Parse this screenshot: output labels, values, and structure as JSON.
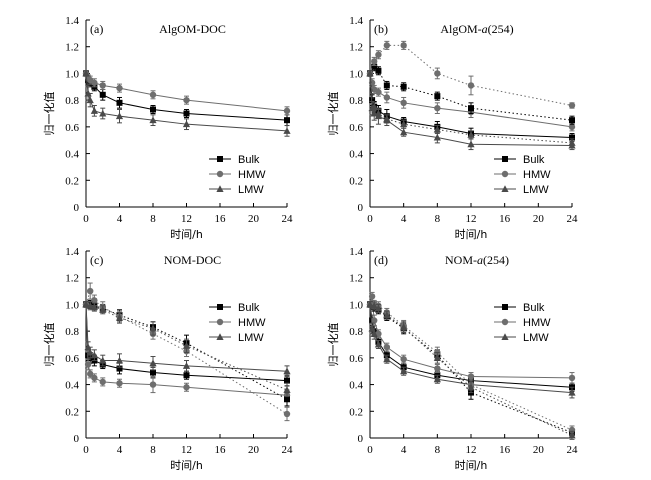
{
  "chart_data": [
    {
      "type": "line",
      "panel_label": "(a)",
      "title_parts": [
        {
          "text": "AlgOM-DOC",
          "italic": false
        }
      ],
      "xlabel": "时间/h",
      "ylabel": "归一化值",
      "xlim": [
        0,
        24
      ],
      "ylim": [
        0,
        1.4
      ],
      "xticks": [
        0,
        4,
        8,
        12,
        16,
        20,
        24
      ],
      "yticks": [
        0,
        0.2,
        0.4,
        0.6,
        0.8,
        1.0,
        1.2,
        1.4
      ],
      "legend_position": "lower-right",
      "series": [
        {
          "name": "Bulk",
          "style": "solid",
          "marker": "square",
          "x": [
            0,
            0.25,
            0.5,
            1,
            2,
            4,
            8,
            12,
            24
          ],
          "y": [
            1.0,
            0.95,
            0.93,
            0.9,
            0.84,
            0.78,
            0.73,
            0.7,
            0.65
          ],
          "err": [
            0.02,
            0.03,
            0.03,
            0.03,
            0.04,
            0.04,
            0.03,
            0.03,
            0.04
          ]
        },
        {
          "name": "HMW",
          "style": "solid",
          "marker": "circle",
          "x": [
            0,
            0.25,
            0.5,
            1,
            2,
            4,
            8,
            12,
            24
          ],
          "y": [
            1.0,
            0.97,
            0.95,
            0.93,
            0.91,
            0.89,
            0.84,
            0.8,
            0.72
          ],
          "err": [
            0.02,
            0.02,
            0.03,
            0.03,
            0.03,
            0.03,
            0.03,
            0.03,
            0.03
          ]
        },
        {
          "name": "LMW",
          "style": "solid",
          "marker": "triangle",
          "x": [
            0,
            0.25,
            0.5,
            1,
            2,
            4,
            8,
            12,
            24
          ],
          "y": [
            1.0,
            0.85,
            0.8,
            0.72,
            0.7,
            0.68,
            0.65,
            0.62,
            0.57
          ],
          "err": [
            0.02,
            0.05,
            0.05,
            0.04,
            0.04,
            0.05,
            0.04,
            0.04,
            0.04
          ]
        }
      ]
    },
    {
      "type": "line",
      "panel_label": "(b)",
      "title_parts": [
        {
          "text": "AlgOM-",
          "italic": false
        },
        {
          "text": "a",
          "italic": true
        },
        {
          "text": "(254)",
          "italic": false
        }
      ],
      "xlabel": "时间/h",
      "ylabel": "归一化值",
      "xlim": [
        0,
        24
      ],
      "ylim": [
        0,
        1.4
      ],
      "xticks": [
        0,
        4,
        8,
        12,
        16,
        20,
        24
      ],
      "yticks": [
        0,
        0.2,
        0.4,
        0.6,
        0.8,
        1.0,
        1.2,
        1.4
      ],
      "legend_position": "lower-right",
      "series": [
        {
          "name": "Bulk",
          "style": "solid",
          "marker": "square",
          "x": [
            0,
            0.25,
            0.5,
            1,
            2,
            4,
            8,
            12,
            24
          ],
          "y": [
            1.0,
            0.8,
            0.75,
            0.72,
            0.68,
            0.64,
            0.6,
            0.55,
            0.52
          ],
          "err": [
            0.02,
            0.04,
            0.04,
            0.04,
            0.05,
            0.03,
            0.04,
            0.04,
            0.03
          ]
        },
        {
          "name": "HMW",
          "style": "solid",
          "marker": "circle",
          "x": [
            0,
            0.25,
            0.5,
            1,
            2,
            4,
            8,
            12,
            24
          ],
          "y": [
            1.0,
            0.93,
            0.88,
            0.86,
            0.82,
            0.78,
            0.74,
            0.71,
            0.6
          ],
          "err": [
            0.02,
            0.03,
            0.03,
            0.03,
            0.04,
            0.04,
            0.04,
            0.04,
            0.03
          ]
        },
        {
          "name": "LMW",
          "style": "solid",
          "marker": "triangle",
          "x": [
            0,
            0.25,
            0.5,
            1,
            2,
            4,
            8,
            12,
            24
          ],
          "y": [
            1.0,
            0.74,
            0.7,
            0.68,
            0.65,
            0.56,
            0.52,
            0.47,
            0.46
          ],
          "err": [
            0.02,
            0.05,
            0.05,
            0.06,
            0.04,
            0.03,
            0.04,
            0.04,
            0.03
          ]
        },
        {
          "name": "",
          "style": "dotted",
          "marker": "square",
          "x": [
            0,
            0.5,
            1,
            2,
            4,
            8,
            12,
            24
          ],
          "y": [
            1.0,
            1.05,
            1.02,
            0.91,
            0.9,
            0.83,
            0.74,
            0.65
          ],
          "err": [
            0.02,
            0.03,
            0.03,
            0.03,
            0.03,
            0.03,
            0.04,
            0.03
          ]
        },
        {
          "name": "",
          "style": "dotted",
          "marker": "circle",
          "x": [
            0,
            0.5,
            1,
            2,
            4,
            8,
            12,
            24
          ],
          "y": [
            1.0,
            1.09,
            1.14,
            1.21,
            1.21,
            1.0,
            0.91,
            0.76
          ],
          "err": [
            0.02,
            0.03,
            0.03,
            0.03,
            0.03,
            0.04,
            0.07,
            0.02
          ]
        },
        {
          "name": "",
          "style": "dotted",
          "marker": "triangle",
          "x": [
            0,
            0.5,
            1,
            2,
            4,
            8,
            12,
            24
          ],
          "y": [
            1.0,
            0.75,
            0.7,
            0.66,
            0.62,
            0.58,
            0.54,
            0.48
          ],
          "err": [
            0.02,
            0.03,
            0.03,
            0.03,
            0.03,
            0.03,
            0.03,
            0.03
          ]
        }
      ]
    },
    {
      "type": "line",
      "panel_label": "(c)",
      "title_parts": [
        {
          "text": "NOM-DOC",
          "italic": false
        }
      ],
      "xlabel": "时间/h",
      "ylabel": "归一化值",
      "xlim": [
        0,
        24
      ],
      "ylim": [
        0,
        1.4
      ],
      "xticks": [
        0,
        4,
        8,
        12,
        16,
        20,
        24
      ],
      "yticks": [
        0,
        0.2,
        0.4,
        0.6,
        0.8,
        1.0,
        1.2,
        1.4
      ],
      "legend_position": "top-right",
      "series": [
        {
          "name": "Bulk",
          "style": "solid",
          "marker": "square",
          "x": [
            0,
            0.25,
            0.5,
            1,
            2,
            4,
            8,
            12,
            24
          ],
          "y": [
            1.0,
            0.62,
            0.6,
            0.58,
            0.55,
            0.52,
            0.49,
            0.47,
            0.43
          ],
          "err": [
            0.02,
            0.04,
            0.04,
            0.04,
            0.03,
            0.04,
            0.04,
            0.03,
            0.04
          ]
        },
        {
          "name": "HMW",
          "style": "solid",
          "marker": "circle",
          "x": [
            0,
            0.25,
            0.5,
            1,
            2,
            4,
            8,
            12,
            24
          ],
          "y": [
            1.0,
            0.55,
            0.48,
            0.45,
            0.42,
            0.41,
            0.4,
            0.38,
            0.32
          ],
          "err": [
            0.02,
            0.04,
            0.03,
            0.03,
            0.03,
            0.03,
            0.06,
            0.03,
            0.04
          ]
        },
        {
          "name": "LMW",
          "style": "solid",
          "marker": "triangle",
          "x": [
            0,
            0.25,
            0.5,
            1,
            2,
            4,
            8,
            12,
            24
          ],
          "y": [
            1.0,
            0.68,
            0.64,
            0.62,
            0.58,
            0.58,
            0.56,
            0.54,
            0.5
          ],
          "err": [
            0.02,
            0.04,
            0.04,
            0.04,
            0.04,
            0.05,
            0.05,
            0.04,
            0.04
          ]
        },
        {
          "name": "",
          "style": "dotted",
          "marker": "square",
          "x": [
            0,
            0.5,
            1,
            2,
            4,
            8,
            12,
            24
          ],
          "y": [
            1.0,
            1.0,
            0.99,
            0.97,
            0.92,
            0.83,
            0.71,
            0.29
          ],
          "err": [
            0.02,
            0.03,
            0.03,
            0.03,
            0.04,
            0.04,
            0.06,
            0.05
          ]
        },
        {
          "name": "",
          "style": "dotted",
          "marker": "circle",
          "x": [
            0,
            0.5,
            1,
            2,
            4,
            8,
            12,
            24
          ],
          "y": [
            1.0,
            1.1,
            1.03,
            0.98,
            0.91,
            0.78,
            0.65,
            0.18
          ],
          "err": [
            0.02,
            0.06,
            0.04,
            0.04,
            0.04,
            0.04,
            0.04,
            0.05
          ]
        },
        {
          "name": "",
          "style": "dotted",
          "marker": "triangle",
          "x": [
            0,
            0.5,
            1,
            2,
            4,
            8,
            12,
            24
          ],
          "y": [
            1.0,
            0.99,
            0.98,
            0.96,
            0.9,
            0.82,
            0.69,
            0.36
          ],
          "err": [
            0.02,
            0.03,
            0.03,
            0.03,
            0.04,
            0.05,
            0.05,
            0.05
          ]
        }
      ]
    },
    {
      "type": "line",
      "panel_label": "(d)",
      "title_parts": [
        {
          "text": "NOM-",
          "italic": false
        },
        {
          "text": "a",
          "italic": true
        },
        {
          "text": "(254)",
          "italic": false
        }
      ],
      "xlabel": "时间/h",
      "ylabel": "归一化值",
      "xlim": [
        0,
        24
      ],
      "ylim": [
        0,
        1.4
      ],
      "xticks": [
        0,
        4,
        8,
        12,
        16,
        20,
        24
      ],
      "yticks": [
        0,
        0.2,
        0.4,
        0.6,
        0.8,
        1.0,
        1.2,
        1.4
      ],
      "legend_position": "top-right",
      "series": [
        {
          "name": "Bulk",
          "style": "solid",
          "marker": "square",
          "x": [
            0,
            0.25,
            0.5,
            1,
            2,
            4,
            8,
            12,
            24
          ],
          "y": [
            1.0,
            0.88,
            0.8,
            0.72,
            0.62,
            0.53,
            0.47,
            0.43,
            0.38
          ],
          "err": [
            0.02,
            0.04,
            0.04,
            0.03,
            0.03,
            0.03,
            0.03,
            0.03,
            0.03
          ]
        },
        {
          "name": "HMW",
          "style": "solid",
          "marker": "circle",
          "x": [
            0,
            0.25,
            0.5,
            1,
            2,
            4,
            8,
            12,
            24
          ],
          "y": [
            1.0,
            1.06,
            0.88,
            0.78,
            0.68,
            0.59,
            0.52,
            0.46,
            0.45
          ],
          "err": [
            0.02,
            0.03,
            0.04,
            0.03,
            0.03,
            0.03,
            0.03,
            0.03,
            0.04
          ]
        },
        {
          "name": "LMW",
          "style": "solid",
          "marker": "triangle",
          "x": [
            0,
            0.25,
            0.5,
            1,
            2,
            4,
            8,
            12,
            24
          ],
          "y": [
            1.0,
            0.82,
            0.78,
            0.7,
            0.59,
            0.5,
            0.44,
            0.4,
            0.34
          ],
          "err": [
            0.02,
            0.04,
            0.04,
            0.03,
            0.03,
            0.03,
            0.03,
            0.03,
            0.04
          ]
        },
        {
          "name": "",
          "style": "dotted",
          "marker": "square",
          "x": [
            0,
            0.5,
            1,
            2,
            4,
            8,
            12,
            24
          ],
          "y": [
            1.0,
            0.98,
            0.96,
            0.91,
            0.82,
            0.62,
            0.34,
            0.04
          ],
          "err": [
            0.02,
            0.03,
            0.03,
            0.03,
            0.04,
            0.04,
            0.05,
            0.03
          ]
        },
        {
          "name": "",
          "style": "dotted",
          "marker": "circle",
          "x": [
            0,
            0.5,
            1,
            2,
            4,
            8,
            12,
            24
          ],
          "y": [
            1.0,
            1.0,
            0.99,
            0.94,
            0.84,
            0.64,
            0.4,
            0.06
          ],
          "err": [
            0.02,
            0.03,
            0.03,
            0.03,
            0.04,
            0.04,
            0.04,
            0.03
          ]
        },
        {
          "name": "",
          "style": "dotted",
          "marker": "triangle",
          "x": [
            0,
            0.5,
            1,
            2,
            4,
            8,
            12,
            24
          ],
          "y": [
            1.0,
            0.99,
            0.97,
            0.92,
            0.83,
            0.6,
            0.38,
            0.02
          ],
          "err": [
            0.02,
            0.03,
            0.03,
            0.03,
            0.04,
            0.04,
            0.04,
            0.03
          ]
        }
      ]
    }
  ],
  "colors": {
    "bulk": "#000000",
    "hmw": "#6e6e6e",
    "lmw": "#4a4a4a",
    "axis": "#000000"
  }
}
